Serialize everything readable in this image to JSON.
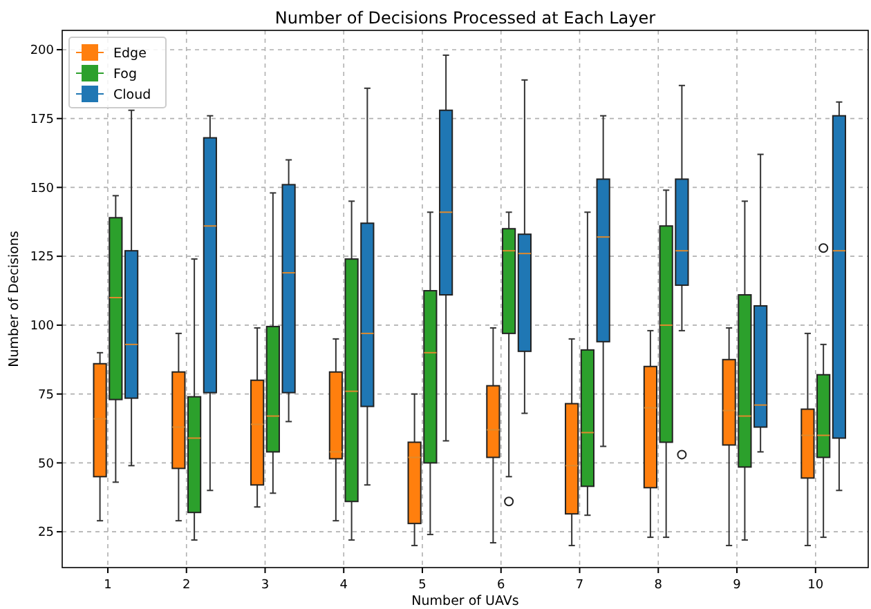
{
  "chart_data": {
    "type": "box",
    "title": "Number of Decisions Processed at Each Layer",
    "xlabel": "Number of UAVs",
    "ylabel": "Number of Decisions",
    "categories": [
      "1",
      "2",
      "3",
      "4",
      "5",
      "6",
      "7",
      "8",
      "9",
      "10"
    ],
    "ylim": [
      12,
      207
    ],
    "yticks": [
      25,
      50,
      75,
      100,
      125,
      150,
      175,
      200
    ],
    "grid": true,
    "legend": "top left",
    "series": [
      {
        "name": "Edge",
        "color": "#ff7f0e",
        "boxes": [
          {
            "low": 29,
            "q1": 45,
            "median": 66,
            "q3": 86,
            "high": 90
          },
          {
            "low": 29,
            "q1": 48,
            "median": 63,
            "q3": 83,
            "high": 97
          },
          {
            "low": 34,
            "q1": 42,
            "median": 64,
            "q3": 80,
            "high": 99
          },
          {
            "low": 29,
            "q1": 51.5,
            "median": 54,
            "q3": 83,
            "high": 95
          },
          {
            "low": 20,
            "q1": 28,
            "median": 52,
            "q3": 57.5,
            "high": 75
          },
          {
            "low": 21,
            "q1": 52,
            "median": 62,
            "q3": 78,
            "high": 99
          },
          {
            "low": 20,
            "q1": 31.5,
            "median": 49,
            "q3": 71.5,
            "high": 95
          },
          {
            "low": 23,
            "q1": 41,
            "median": 70,
            "q3": 85,
            "high": 98
          },
          {
            "low": 20,
            "q1": 56.5,
            "median": 69,
            "q3": 87.5,
            "high": 99
          },
          {
            "low": 20,
            "q1": 44.5,
            "median": 60,
            "q3": 69.5,
            "high": 97
          }
        ]
      },
      {
        "name": "Fog",
        "color": "#2ca02c",
        "boxes": [
          {
            "low": 43,
            "q1": 73,
            "median": 110,
            "q3": 139,
            "high": 147
          },
          {
            "low": 22,
            "q1": 32,
            "median": 59,
            "q3": 74,
            "high": 124
          },
          {
            "low": 39,
            "q1": 54,
            "median": 67,
            "q3": 99.5,
            "high": 148
          },
          {
            "low": 22,
            "q1": 36,
            "median": 76,
            "q3": 124,
            "high": 145
          },
          {
            "low": 24,
            "q1": 50,
            "median": 90,
            "q3": 112.5,
            "high": 141
          },
          {
            "low": 45,
            "q1": 97,
            "median": 127,
            "q3": 135,
            "high": 141,
            "outliers": [
              36
            ]
          },
          {
            "low": 31,
            "q1": 41.5,
            "median": 61,
            "q3": 91,
            "high": 141
          },
          {
            "low": 23,
            "q1": 57.5,
            "median": 100,
            "q3": 136,
            "high": 149
          },
          {
            "low": 22,
            "q1": 48.5,
            "median": 67,
            "q3": 111,
            "high": 145
          },
          {
            "low": 23,
            "q1": 52,
            "median": 60,
            "q3": 82,
            "high": 93,
            "outliers": [
              128
            ]
          }
        ]
      },
      {
        "name": "Cloud",
        "color": "#1f77b4",
        "boxes": [
          {
            "low": 49,
            "q1": 73.5,
            "median": 93,
            "q3": 127,
            "high": 178
          },
          {
            "low": 40,
            "q1": 75.5,
            "median": 136,
            "q3": 168,
            "high": 176
          },
          {
            "low": 65,
            "q1": 75.5,
            "median": 119,
            "q3": 151,
            "high": 160
          },
          {
            "low": 42,
            "q1": 70.5,
            "median": 97,
            "q3": 137,
            "high": 186
          },
          {
            "low": 58,
            "q1": 111,
            "median": 141,
            "q3": 178,
            "high": 198
          },
          {
            "low": 68,
            "q1": 90.5,
            "median": 126,
            "q3": 133,
            "high": 189
          },
          {
            "low": 56,
            "q1": 94,
            "median": 132,
            "q3": 153,
            "high": 176
          },
          {
            "low": 98,
            "q1": 114.5,
            "median": 127,
            "q3": 153,
            "high": 187,
            "outliers": [
              53
            ]
          },
          {
            "low": 54,
            "q1": 63,
            "median": 71,
            "q3": 107,
            "high": 162
          },
          {
            "low": 40,
            "q1": 59,
            "median": 127,
            "q3": 176,
            "high": 181
          }
        ]
      }
    ]
  }
}
